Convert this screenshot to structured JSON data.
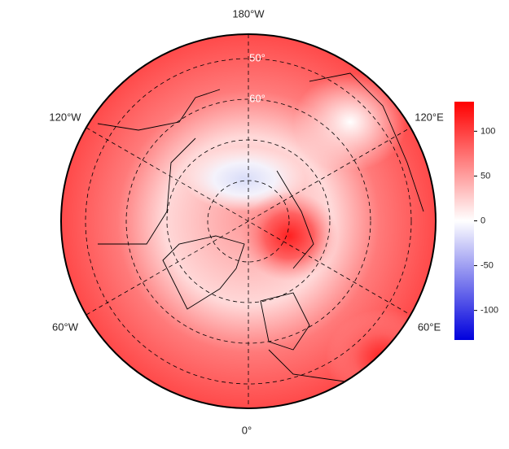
{
  "map": {
    "lon_labels": [
      "180°W",
      "120°W",
      "120°E",
      "60°W",
      "60°E",
      "0°"
    ],
    "lat_labels": [
      "50°",
      "60°"
    ]
  },
  "colorbar": {
    "lim": [
      -133,
      133
    ],
    "ticks": [
      100,
      50,
      0,
      -50,
      -100
    ]
  }
}
